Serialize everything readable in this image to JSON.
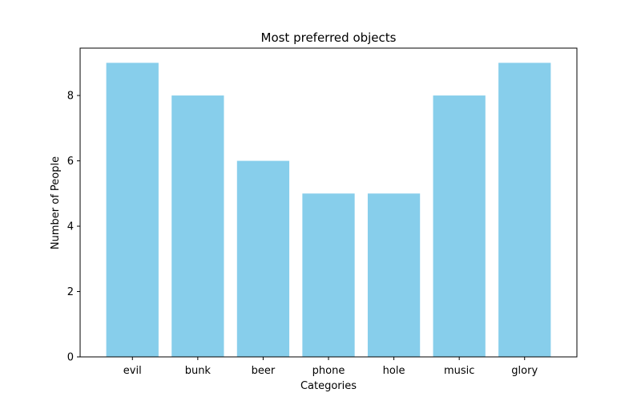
{
  "chart_data": {
    "type": "bar",
    "title": "Most preferred objects",
    "xlabel": "Categories",
    "ylabel": "Number of People",
    "categories": [
      "evil",
      "bunk",
      "beer",
      "phone",
      "hole",
      "music",
      "glory"
    ],
    "values": [
      9,
      8,
      6,
      5,
      5,
      8,
      9
    ],
    "ylim": [
      0,
      9.45
    ],
    "yticks": [
      0,
      2,
      4,
      6,
      8
    ],
    "grid": false,
    "bar_color": "#87ceeb"
  }
}
